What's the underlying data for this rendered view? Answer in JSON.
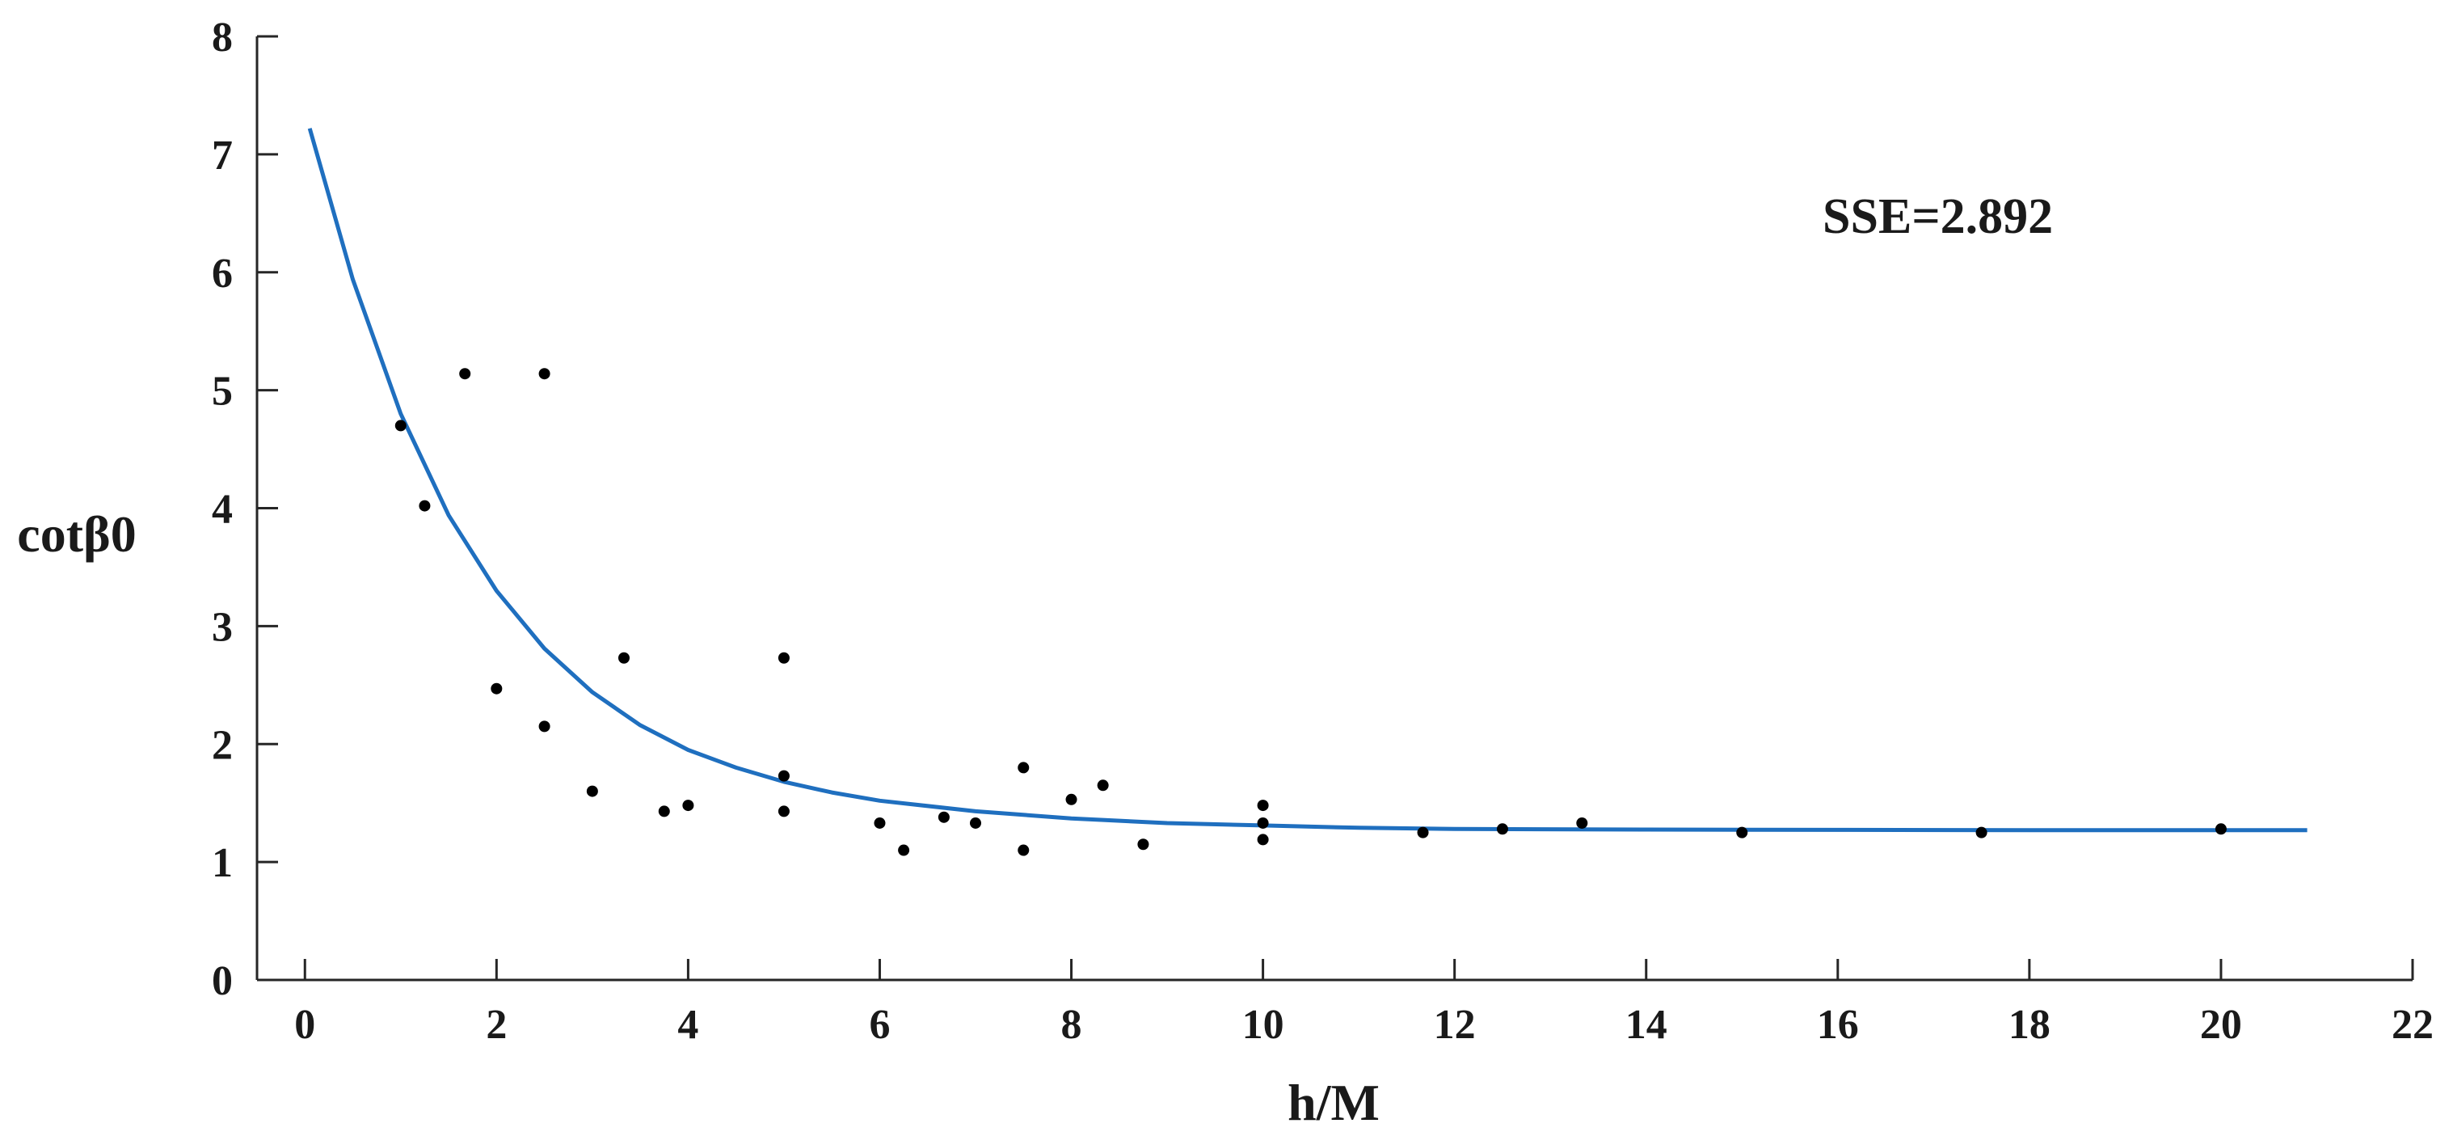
{
  "chart_data": {
    "type": "scatter",
    "xlabel": "h/M",
    "ylabel": "cotβ0",
    "xlim": [
      -0.5,
      22
    ],
    "ylim": [
      0,
      8
    ],
    "xticks": [
      0,
      2,
      4,
      6,
      8,
      10,
      12,
      14,
      16,
      18,
      20,
      22
    ],
    "yticks": [
      0,
      1,
      2,
      3,
      4,
      5,
      6,
      7,
      8
    ],
    "grid": false,
    "annotation": "SSE=2.892",
    "series": [
      {
        "kind": "scatter",
        "color": "#000000",
        "points": [
          [
            1.0,
            4.7
          ],
          [
            1.25,
            4.02
          ],
          [
            1.67,
            5.14
          ],
          [
            2.0,
            2.47
          ],
          [
            2.5,
            5.14
          ],
          [
            2.5,
            2.15
          ],
          [
            3.0,
            1.6
          ],
          [
            3.33,
            2.73
          ],
          [
            3.75,
            1.43
          ],
          [
            4.0,
            1.48
          ],
          [
            5.0,
            2.73
          ],
          [
            5.0,
            1.73
          ],
          [
            5.0,
            1.43
          ],
          [
            6.0,
            1.33
          ],
          [
            6.25,
            1.1
          ],
          [
            6.67,
            1.38
          ],
          [
            7.0,
            1.33
          ],
          [
            7.5,
            1.8
          ],
          [
            7.5,
            1.1
          ],
          [
            8.0,
            1.53
          ],
          [
            8.33,
            1.65
          ],
          [
            8.75,
            1.15
          ],
          [
            10.0,
            1.48
          ],
          [
            10.0,
            1.33
          ],
          [
            10.0,
            1.19
          ],
          [
            11.67,
            1.25
          ],
          [
            12.5,
            1.28
          ],
          [
            13.33,
            1.33
          ],
          [
            15.0,
            1.25
          ],
          [
            17.5,
            1.25
          ],
          [
            20.0,
            1.28
          ]
        ]
      },
      {
        "kind": "line",
        "color": "#1f6fbf",
        "x": [
          0.05,
          0.5,
          1.0,
          1.5,
          2.0,
          2.5,
          3.0,
          3.5,
          4.0,
          4.5,
          5.0,
          5.5,
          6.0,
          7.0,
          8.0,
          9.0,
          10.0,
          11.0,
          12.0,
          14.0,
          16.0,
          18.0,
          20.0,
          20.9
        ],
        "y": [
          7.22,
          5.94,
          4.8,
          3.94,
          3.3,
          2.81,
          2.44,
          2.16,
          1.95,
          1.8,
          1.68,
          1.59,
          1.52,
          1.43,
          1.37,
          1.33,
          1.31,
          1.29,
          1.28,
          1.275,
          1.272,
          1.27,
          1.27,
          1.27
        ]
      }
    ]
  }
}
